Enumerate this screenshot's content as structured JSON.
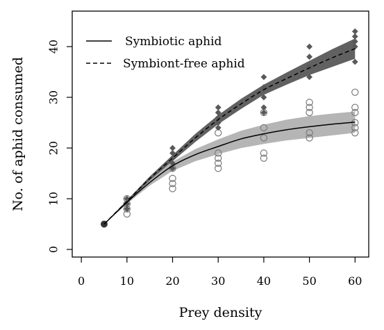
{
  "chart_data": {
    "type": "scatter",
    "title": "",
    "xlabel": "Prey density",
    "ylabel": "No. of aphid consumed",
    "xlim": [
      -2,
      63
    ],
    "ylim": [
      -1.5,
      47
    ],
    "x_ticks": [
      0,
      10,
      20,
      30,
      40,
      50,
      60
    ],
    "y_ticks": [
      0,
      10,
      20,
      30,
      40
    ],
    "grid": false,
    "legend_position": "top-left",
    "series": [
      {
        "name": "Symbiotic aphid",
        "line_style": "solid",
        "marker": "open-circle",
        "band_color": "#b5b5b5",
        "points": [
          [
            5,
            5
          ],
          [
            10,
            7
          ],
          [
            10,
            8
          ],
          [
            10,
            9
          ],
          [
            10,
            10
          ],
          [
            20,
            12
          ],
          [
            20,
            13
          ],
          [
            20,
            14
          ],
          [
            20,
            16
          ],
          [
            30,
            16
          ],
          [
            30,
            17
          ],
          [
            30,
            18
          ],
          [
            30,
            19
          ],
          [
            30,
            23
          ],
          [
            40,
            18
          ],
          [
            40,
            19
          ],
          [
            40,
            22
          ],
          [
            40,
            24
          ],
          [
            40,
            27
          ],
          [
            50,
            22
          ],
          [
            50,
            23
          ],
          [
            50,
            27
          ],
          [
            50,
            28
          ],
          [
            50,
            29
          ],
          [
            60,
            23
          ],
          [
            60,
            24
          ],
          [
            60,
            25
          ],
          [
            60,
            27
          ],
          [
            60,
            28
          ],
          [
            60,
            31
          ]
        ],
        "fit": {
          "x": [
            5,
            10,
            15,
            20,
            25,
            30,
            35,
            40,
            45,
            50,
            55,
            60
          ],
          "y": [
            5,
            9.3,
            13.2,
            16.5,
            18.7,
            20.3,
            21.8,
            22.8,
            23.6,
            24.2,
            24.7,
            25.1
          ],
          "lower": [
            5,
            9.0,
            12.6,
            15.5,
            17.4,
            18.8,
            20.0,
            20.8,
            21.5,
            22.0,
            22.5,
            23.0
          ],
          "upper": [
            5,
            9.6,
            13.8,
            17.3,
            19.8,
            21.7,
            23.4,
            24.6,
            25.6,
            26.3,
            26.8,
            27.2
          ]
        }
      },
      {
        "name": "Symbiont-free aphid",
        "line_style": "dashed",
        "marker": "filled-diamond",
        "band_color": "#595959",
        "points": [
          [
            5,
            5
          ],
          [
            10,
            8
          ],
          [
            10,
            9
          ],
          [
            10,
            10
          ],
          [
            20,
            16
          ],
          [
            20,
            17
          ],
          [
            20,
            18
          ],
          [
            20,
            19
          ],
          [
            20,
            20
          ],
          [
            30,
            24
          ],
          [
            30,
            25
          ],
          [
            30,
            26
          ],
          [
            30,
            27
          ],
          [
            30,
            28
          ],
          [
            40,
            27
          ],
          [
            40,
            28
          ],
          [
            40,
            30
          ],
          [
            40,
            32
          ],
          [
            40,
            34
          ],
          [
            50,
            34
          ],
          [
            50,
            36
          ],
          [
            50,
            38
          ],
          [
            50,
            40
          ],
          [
            60,
            37
          ],
          [
            60,
            40
          ],
          [
            60,
            41
          ],
          [
            60,
            42
          ],
          [
            60,
            43
          ]
        ],
        "fit": {
          "x": [
            5,
            10,
            15,
            20,
            25,
            30,
            35,
            40,
            45,
            50,
            55,
            60
          ],
          "y": [
            5,
            9.5,
            14.0,
            18.0,
            22.0,
            25.6,
            28.7,
            31.5,
            33.7,
            35.8,
            37.8,
            39.6
          ],
          "lower": [
            5,
            9.3,
            13.6,
            17.4,
            21.2,
            24.7,
            27.7,
            30.5,
            32.5,
            34.4,
            36.0,
            37.6
          ],
          "upper": [
            5,
            9.7,
            14.4,
            18.6,
            22.8,
            26.5,
            29.7,
            32.5,
            34.9,
            37.2,
            39.5,
            41.6
          ]
        }
      }
    ]
  }
}
